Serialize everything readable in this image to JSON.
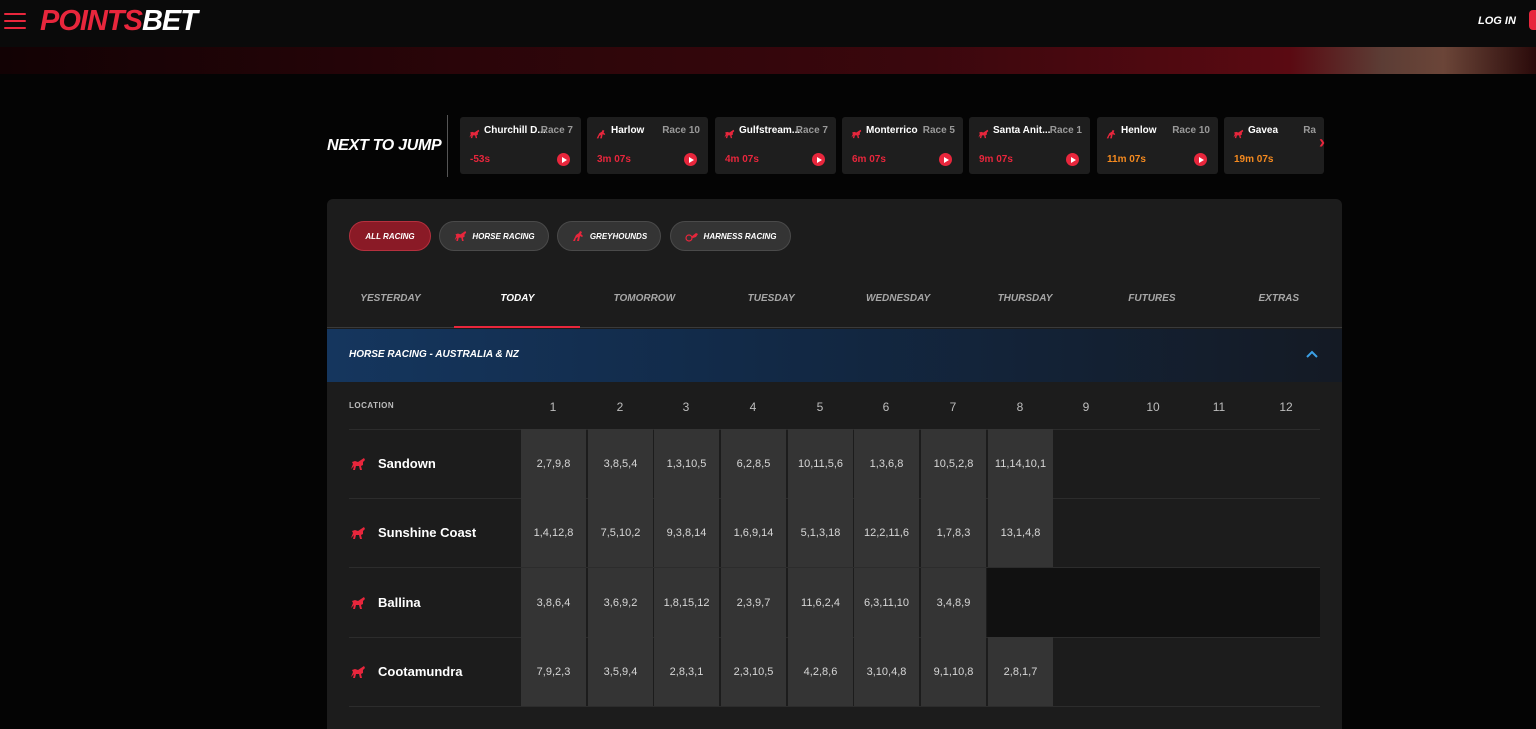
{
  "header": {
    "logo_points": "POINTS",
    "logo_bet": "BET",
    "login_label": "LOG IN"
  },
  "next_to_jump": {
    "title": "NEXT TO JUMP",
    "cards": [
      {
        "name": "Churchill D...",
        "race": "Race 7",
        "time": "-53s",
        "type": "horse",
        "time_color": "#e8263c"
      },
      {
        "name": "Harlow",
        "race": "Race 10",
        "time": "3m 07s",
        "type": "greyhound",
        "time_color": "#e8263c"
      },
      {
        "name": "Gulfstream...",
        "race": "Race 7",
        "time": "4m 07s",
        "type": "horse",
        "time_color": "#e8263c"
      },
      {
        "name": "Monterrico",
        "race": "Race 5",
        "time": "6m 07s",
        "type": "horse",
        "time_color": "#e8263c"
      },
      {
        "name": "Santa Anit...",
        "race": "Race 1",
        "time": "9m 07s",
        "type": "horse",
        "time_color": "#e8263c"
      },
      {
        "name": "Henlow",
        "race": "Race 10",
        "time": "11m 07s",
        "type": "greyhound",
        "time_color": "#f58a1f"
      },
      {
        "name": "Gavea",
        "race": "Ra",
        "time": "19m 07s",
        "type": "horse",
        "time_color": "#f58a1f"
      }
    ]
  },
  "filters": [
    {
      "label": "ALL RACING",
      "icon": "none",
      "active": true
    },
    {
      "label": "HORSE RACING",
      "icon": "horse-icon",
      "active": false
    },
    {
      "label": "GREYHOUNDS",
      "icon": "greyhound-icon",
      "active": false
    },
    {
      "label": "HARNESS RACING",
      "icon": "harness-icon",
      "active": false
    }
  ],
  "day_tabs": [
    "YESTERDAY",
    "TODAY",
    "TOMORROW",
    "TUESDAY",
    "WEDNESDAY",
    "THURSDAY",
    "FUTURES",
    "EXTRAS"
  ],
  "active_tab": "TODAY",
  "section": {
    "title": "HORSE RACING - AUSTRALIA & NZ",
    "location_label": "LOCATION",
    "race_numbers": [
      "1",
      "2",
      "3",
      "4",
      "5",
      "6",
      "7",
      "8",
      "9",
      "10",
      "11",
      "12"
    ],
    "rows": [
      {
        "venue": "Sandown",
        "results": [
          "2,7,9,8",
          "3,8,5,4",
          "1,3,10,5",
          "6,2,8,5",
          "10,11,5,6",
          "1,3,6,8",
          "10,5,2,8",
          "11,14,10,1"
        ]
      },
      {
        "venue": "Sunshine Coast",
        "results": [
          "1,4,12,8",
          "7,5,10,2",
          "9,3,8,14",
          "1,6,9,14",
          "5,1,3,18",
          "12,2,11,6",
          "1,7,8,3",
          "13,1,4,8"
        ]
      },
      {
        "venue": "Ballina",
        "results": [
          "3,8,6,4",
          "3,6,9,2",
          "1,8,15,12",
          "2,3,9,7",
          "11,6,2,4",
          "6,3,11,10",
          "3,4,8,9"
        ]
      },
      {
        "venue": "Cootamundra",
        "results": [
          "7,9,2,3",
          "3,5,9,4",
          "2,8,3,1",
          "2,3,10,5",
          "4,2,8,6",
          "3,10,4,8",
          "9,1,10,8",
          "2,8,1,7"
        ]
      }
    ]
  },
  "colors": {
    "brand_red": "#e8263c",
    "countdown_orange": "#f58a1f",
    "section_blue": "#15365e"
  }
}
